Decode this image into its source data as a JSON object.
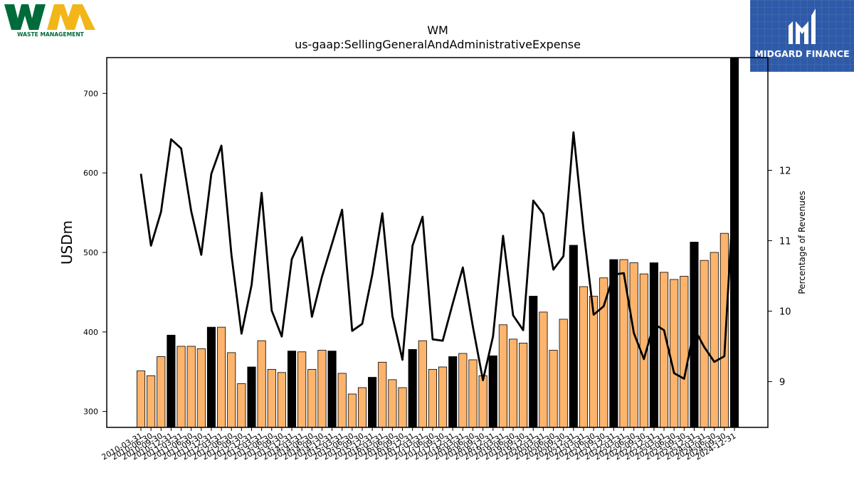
{
  "logos": {
    "left": {
      "text": "WASTE MANAGEMENT",
      "mark": "WM"
    },
    "right": {
      "text": "MIDGARD FINANCE"
    }
  },
  "colors": {
    "bar_highlight": "#000000",
    "bar_default": "#fdb46c",
    "line": "#000000",
    "wm_green": "#006b3a",
    "wm_yellow": "#f2b619",
    "midgard_blue": "#2e5aa8"
  },
  "chart_data": {
    "type": "bar",
    "title": "WM",
    "subtitle": "us-gaap:SellingGeneralAndAdministrativeExpense",
    "ylabel": "USDm",
    "y2label": "Percentage of Revenues",
    "ylim": [
      280,
      745
    ],
    "y2lim": [
      8.35,
      13.6
    ],
    "yticks": [
      300,
      400,
      500,
      600,
      700
    ],
    "y2ticks": [
      9,
      10,
      11,
      12
    ],
    "categories": [
      "2010-03-31",
      "2010-06-30",
      "2010-09-30",
      "2010-12-31",
      "2011-03-31",
      "2011-06-30",
      "2011-09-30",
      "2011-12-31",
      "2012-03-31",
      "2012-06-30",
      "2012-09-30",
      "2012-12-31",
      "2013-03-31",
      "2013-06-30",
      "2013-09-30",
      "2013-12-31",
      "2014-03-31",
      "2014-06-30",
      "2014-09-30",
      "2014-12-31",
      "2015-03-31",
      "2015-06-30",
      "2015-09-30",
      "2015-12-31",
      "2016-03-31",
      "2016-06-30",
      "2016-09-30",
      "2016-12-31",
      "2017-03-31",
      "2017-06-30",
      "2017-09-30",
      "2017-12-31",
      "2018-03-31",
      "2018-06-30",
      "2018-09-30",
      "2018-12-31",
      "2019-03-31",
      "2019-06-30",
      "2019-09-30",
      "2019-12-31",
      "2020-03-31",
      "2020-06-30",
      "2020-09-30",
      "2020-12-31",
      "2021-03-31",
      "2021-06-30",
      "2021-09-30",
      "2021-12-31",
      "2022-03-31",
      "2022-06-30",
      "2022-09-30",
      "2022-12-31",
      "2023-03-31",
      "2023-06-30",
      "2023-09-30",
      "2023-12-31",
      "2024-03-31",
      "2024-06-30",
      "2024-09-30",
      "2024-12-31"
    ],
    "series": [
      {
        "type": "bar",
        "values": [
          351,
          345,
          369,
          396,
          382,
          382,
          379,
          406,
          406,
          374,
          335,
          356,
          389,
          353,
          349,
          376,
          375,
          353,
          377,
          376,
          348,
          322,
          330,
          343,
          362,
          340,
          330,
          378,
          389,
          353,
          356,
          369,
          373,
          365,
          345,
          370,
          409,
          391,
          386,
          445,
          425,
          377,
          416,
          509,
          457,
          445,
          468,
          491,
          491,
          487,
          473,
          487,
          475,
          466,
          470,
          513,
          490,
          500,
          524,
          745
        ]
      },
      {
        "type": "line",
        "axis": "right",
        "values": [
          11.95,
          10.93,
          11.41,
          12.44,
          12.31,
          11.42,
          10.8,
          11.95,
          12.35,
          10.8,
          9.68,
          10.37,
          11.68,
          10.01,
          9.64,
          10.74,
          11.05,
          9.92,
          10.49,
          10.96,
          11.44,
          9.72,
          9.82,
          10.52,
          11.39,
          9.93,
          9.31,
          10.93,
          11.34,
          9.6,
          9.58,
          10.11,
          10.62,
          9.78,
          9.02,
          9.64,
          11.07,
          9.94,
          9.73,
          11.57,
          11.38,
          10.59,
          10.78,
          12.54,
          11.15,
          9.95,
          10.07,
          10.52,
          10.54,
          9.69,
          9.32,
          9.82,
          9.73,
          9.12,
          9.04,
          9.75,
          9.49,
          9.28,
          9.36,
          11.9
        ]
      }
    ],
    "highlight_categories": [
      "2010-12-31",
      "2011-12-31",
      "2012-12-31",
      "2013-12-31",
      "2014-12-31",
      "2015-12-31",
      "2016-12-31",
      "2017-12-31",
      "2018-12-31",
      "2019-12-31",
      "2020-12-31",
      "2021-12-31",
      "2022-12-31",
      "2023-12-31",
      "2024-12-31"
    ],
    "grid": false,
    "legend": "none"
  }
}
